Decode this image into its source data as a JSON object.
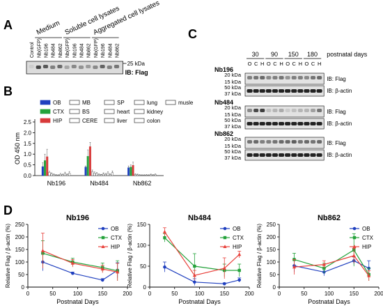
{
  "panel_labels": {
    "a": "A",
    "b": "B",
    "c": "C",
    "d": "D"
  },
  "panel_a": {
    "group_labels": [
      "Medium",
      "Soluble cell lysates",
      "Aggregated cell lysates"
    ],
    "lanes": [
      "Control",
      "Nb(GFP)",
      "Nb196",
      "Nb484",
      "Nb862",
      "Nb(GFP)",
      "Nb196",
      "Nb484",
      "Nb862",
      "Nb(GFP)",
      "Nb196",
      "Nb484",
      "Nb862"
    ],
    "marker": "25 kDa",
    "ib": "IB: Flag",
    "band_intensity": [
      0.15,
      0.85,
      0.75,
      0.55,
      0.65,
      0.35,
      0.5,
      0.45,
      0.4,
      0.5,
      0.7,
      0.55,
      0.6
    ]
  },
  "panel_c": {
    "days": [
      "30",
      "90",
      "150",
      "180"
    ],
    "day_axis_label": "postnatal days",
    "regions": [
      "O",
      "C",
      "H",
      "O",
      "C",
      "H",
      "O",
      "C",
      "H",
      "O",
      "C",
      "H"
    ],
    "groups": [
      {
        "name": "Nb196",
        "flag_marker": "20 kDa",
        "flag_marker2": "15 kDa",
        "actin_marker": "50 kDa",
        "actin_marker2": "37 kDa",
        "flag_intensity": [
          0.5,
          0.55,
          0.6,
          0.45,
          0.5,
          0.55,
          0.4,
          0.5,
          0.5,
          0.45,
          0.55,
          0.6
        ]
      },
      {
        "name": "Nb484",
        "flag_marker": "20 kDa",
        "flag_marker2": "15 kDa",
        "actin_marker": "50 kDa",
        "actin_marker2": "37 kDa",
        "flag_intensity": [
          0.45,
          0.75,
          0.8,
          0.2,
          0.25,
          0.3,
          0.15,
          0.2,
          0.25,
          0.25,
          0.35,
          0.55
        ]
      },
      {
        "name": "Nb862",
        "flag_marker": "20 kDa",
        "flag_marker2": "15 kDa",
        "actin_marker": "50 kDa",
        "actin_marker2": "37 kDa",
        "flag_intensity": [
          0.55,
          0.6,
          0.5,
          0.5,
          0.55,
          0.6,
          0.6,
          0.65,
          0.55,
          0.6,
          0.55,
          0.6
        ]
      }
    ],
    "ib_flag": "IB: Flag",
    "ib_actin": "IB: β-actin"
  },
  "chart_data": [
    {
      "type": "bar",
      "panel": "B",
      "ylabel": "OD 450 nm",
      "ylim": [
        0,
        2.5
      ],
      "yticks": [
        "0.0",
        "0.5",
        "1.0",
        "1.5",
        "2.0",
        "2.5"
      ],
      "categories": [
        "Nb196",
        "Nb484",
        "Nb862"
      ],
      "legend": [
        "OB",
        "CTX",
        "HIP",
        "MB",
        "BS",
        "CERE",
        "SP",
        "heart",
        "liver",
        "lung",
        "kidney",
        "colon",
        "musle"
      ],
      "colors": {
        "OB": "#1f3fbf",
        "CTX": "#23a23a",
        "HIP": "#d83a3a",
        "other": "#ffffff"
      },
      "legend_position": "top",
      "series": [
        {
          "name": "OB",
          "values": [
            0.42,
            0.4,
            0.37
          ],
          "errors": [
            0.18,
            0.05,
            0.08
          ]
        },
        {
          "name": "CTX",
          "values": [
            0.7,
            0.9,
            0.4
          ],
          "errors": [
            0.3,
            0.3,
            0.1
          ]
        },
        {
          "name": "HIP",
          "values": [
            0.88,
            1.35,
            0.48
          ],
          "errors": [
            0.35,
            0.2,
            0.15
          ]
        },
        {
          "name": "MB",
          "values": [
            0.15,
            0.18,
            0.05
          ],
          "errors": [
            0.05,
            0.08,
            0.04
          ]
        },
        {
          "name": "BS",
          "values": [
            0.08,
            0.12,
            0.04
          ],
          "errors": [
            0.05,
            0.05,
            0.03
          ]
        },
        {
          "name": "CERE",
          "values": [
            0.05,
            0.1,
            0.03
          ],
          "errors": [
            0.03,
            0.04,
            0.02
          ]
        },
        {
          "name": "SP",
          "values": [
            0.03,
            0.05,
            0.02
          ],
          "errors": [
            0.02,
            0.03,
            0.02
          ]
        },
        {
          "name": "heart",
          "values": [
            0.02,
            0.04,
            0.02
          ],
          "errors": [
            0.02,
            0.02,
            0.02
          ]
        },
        {
          "name": "liver",
          "values": [
            0.06,
            0.08,
            0.03
          ],
          "errors": [
            0.04,
            0.05,
            0.02
          ]
        },
        {
          "name": "lung",
          "values": [
            0.04,
            0.06,
            0.02
          ],
          "errors": [
            0.03,
            0.04,
            0.02
          ]
        },
        {
          "name": "kidney",
          "values": [
            0.1,
            0.12,
            0.04
          ],
          "errors": [
            0.06,
            0.06,
            0.03
          ]
        },
        {
          "name": "colon",
          "values": [
            0.05,
            0.05,
            0.03
          ],
          "errors": [
            0.03,
            0.03,
            0.02
          ]
        },
        {
          "name": "musle",
          "values": [
            0.12,
            0.14,
            0.05
          ],
          "errors": [
            0.07,
            0.08,
            0.03
          ]
        }
      ]
    },
    {
      "type": "line",
      "panel": "D1",
      "title": "Nb196",
      "xlabel": "Postnatal Days",
      "ylabel": "Relative Flag / β-actin (%)",
      "xlim": [
        0,
        200
      ],
      "xticks": [
        0,
        50,
        100,
        150,
        200
      ],
      "ylim": [
        0,
        250
      ],
      "yticks": [
        0,
        50,
        100,
        150,
        200,
        250
      ],
      "x": [
        30,
        90,
        150,
        180
      ],
      "legend_position": "top-right",
      "series": [
        {
          "name": "OB",
          "color": "#1f3fbf",
          "values": [
            100,
            55,
            28,
            67
          ],
          "errors": [
            35,
            5,
            6,
            30
          ]
        },
        {
          "name": "CTX",
          "color": "#23a23a",
          "values": [
            135,
            100,
            78,
            65
          ],
          "errors": [
            50,
            15,
            18,
            40
          ]
        },
        {
          "name": "HIP",
          "color": "#e8413b",
          "values": [
            145,
            95,
            72,
            60
          ],
          "errors": [
            70,
            15,
            15,
            35
          ]
        }
      ]
    },
    {
      "type": "line",
      "panel": "D2",
      "title": "Nb484",
      "xlabel": "Postnatal Days",
      "ylabel": "Relative Flag / β-actin (%)",
      "xlim": [
        0,
        200
      ],
      "xticks": [
        0,
        50,
        100,
        150,
        200
      ],
      "ylim": [
        0,
        150
      ],
      "yticks": [
        0,
        50,
        100,
        150
      ],
      "x": [
        30,
        90,
        150,
        180
      ],
      "legend_position": "top-right",
      "series": [
        {
          "name": "OB",
          "color": "#1f3fbf",
          "values": [
            48,
            12,
            8,
            17
          ],
          "errors": [
            12,
            8,
            2,
            5
          ]
        },
        {
          "name": "CTX",
          "color": "#23a23a",
          "values": [
            118,
            50,
            40,
            40
          ],
          "errors": [
            10,
            30,
            15,
            15
          ]
        },
        {
          "name": "HIP",
          "color": "#e8413b",
          "values": [
            132,
            28,
            45,
            78
          ],
          "errors": [
            10,
            12,
            25,
            8
          ]
        }
      ]
    },
    {
      "type": "line",
      "panel": "D3",
      "title": "Nb862",
      "xlabel": "Postnatal Days",
      "ylabel": "Relative Flag / β-actin (%)",
      "xlim": [
        0,
        200
      ],
      "xticks": [
        0,
        50,
        100,
        150,
        200
      ],
      "ylim": [
        0,
        250
      ],
      "yticks": [
        0,
        50,
        100,
        150,
        200,
        250
      ],
      "x": [
        30,
        90,
        150,
        180
      ],
      "legend_position": "top-right",
      "series": [
        {
          "name": "OB",
          "color": "#1f3fbf",
          "values": [
            85,
            60,
            105,
            75
          ],
          "errors": [
            25,
            15,
            15,
            30
          ]
        },
        {
          "name": "CTX",
          "color": "#23a23a",
          "values": [
            110,
            75,
            148,
            50
          ],
          "errors": [
            25,
            20,
            65,
            25
          ]
        },
        {
          "name": "HIP",
          "color": "#e8413b",
          "values": [
            80,
            90,
            125,
            45
          ],
          "errors": [
            30,
            15,
            30,
            20
          ]
        }
      ]
    }
  ]
}
